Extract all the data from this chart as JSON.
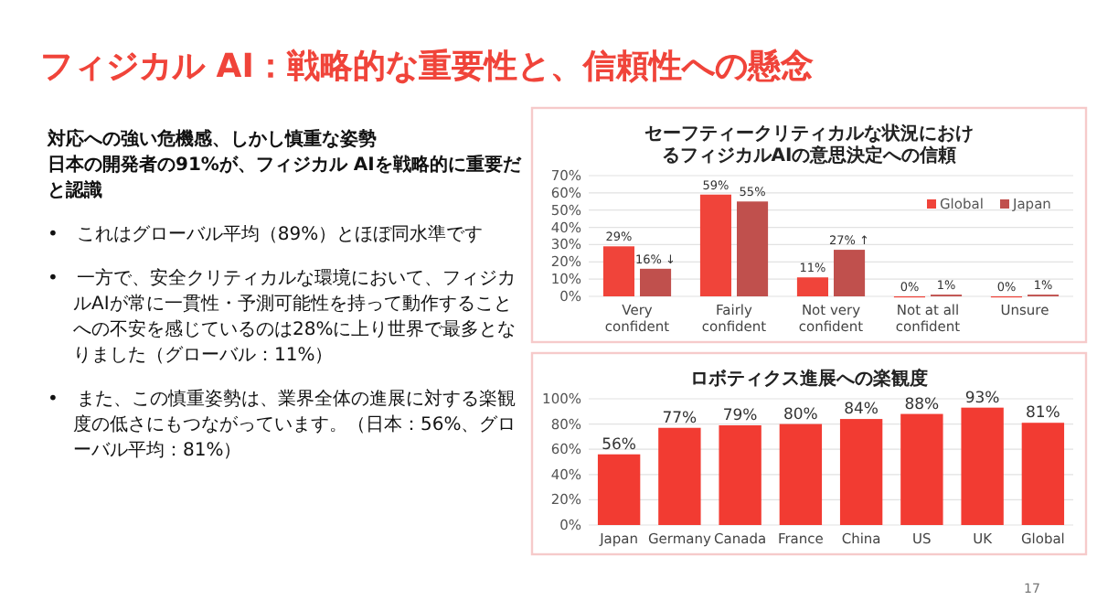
{
  "chart_data": [
    {
      "type": "other",
      "title": "フィジカル AI：戦略的な重要性と、信頼性への懸念",
      "subtitle": "対応への強い危機感、しかし慎重な姿勢",
      "annotations": [
        "日本の開発者の91%が、フィジカル AIを戦略的に重要だと認識",
        "•　これはグローバル平均（89%）とほぼ同水準です",
        "•　一方で、安全クリティカルな環境において、フィジカルAIが常に一貫性・予測可能性を持って動作することへの不安を感じているのは28%に上り世界で最多となりました（グローバル：11%）",
        "•　また、この慎重姿勢は、業界全体の進展に対する楽観度の低さにもつながっています。（日本：56%、グローバル平均：81%）",
        "17"
      ]
    },
    {
      "type": "bar",
      "title": "セーフティークリティカルな状況におけるフィジカルAIの意思決定への信頼",
      "categories": [
        "Very confident",
        "Fairly confident",
        "Not very confident",
        "Not at all confident",
        "Unsure"
      ],
      "ylim": [
        0,
        70
      ],
      "yticks": [
        {
          "value": 0,
          "label": "0%"
        },
        {
          "value": 10,
          "label": "10%"
        },
        {
          "value": 20,
          "label": "20%"
        },
        {
          "value": 30,
          "label": "30%"
        },
        {
          "value": 40,
          "label": "40%"
        },
        {
          "value": 50,
          "label": "50%"
        },
        {
          "value": 60,
          "label": "60%"
        },
        {
          "value": 70,
          "label": "70%"
        }
      ],
      "grid": "y",
      "legend": "top right",
      "series": [
        {
          "name": "Global",
          "color": "#f0443a",
          "values": [
            29,
            59,
            11,
            0,
            0
          ],
          "value_labels": [
            "29%",
            "59%",
            "11%",
            "0%",
            "0%"
          ]
        },
        {
          "name": "Japan",
          "color": "#c0504d",
          "values": [
            16,
            55,
            27,
            1,
            1
          ],
          "value_labels": [
            "16% ↓",
            "55%",
            "27% ↑",
            "1%",
            "1%"
          ]
        }
      ]
    },
    {
      "type": "bar",
      "title": "ロボティクス進展への楽観度",
      "categories": [
        "Japan",
        "Germany",
        "Canada",
        "France",
        "China",
        "US",
        "UK",
        "Global"
      ],
      "values": [
        56,
        77,
        79,
        80,
        84,
        88,
        93,
        81
      ],
      "value_labels": [
        "56%",
        "77%",
        "79%",
        "80%",
        "84%",
        "88%",
        "93%",
        "81%"
      ],
      "color": "#f23b32",
      "ylim": [
        0,
        100
      ],
      "yticks": [
        {
          "value": 0,
          "label": "0%"
        },
        {
          "value": 20,
          "label": "20%"
        },
        {
          "value": 40,
          "label": "40%"
        },
        {
          "value": 60,
          "label": "60%"
        },
        {
          "value": 80,
          "label": "80%"
        },
        {
          "value": 100,
          "label": "100%"
        }
      ],
      "grid": "y"
    }
  ]
}
